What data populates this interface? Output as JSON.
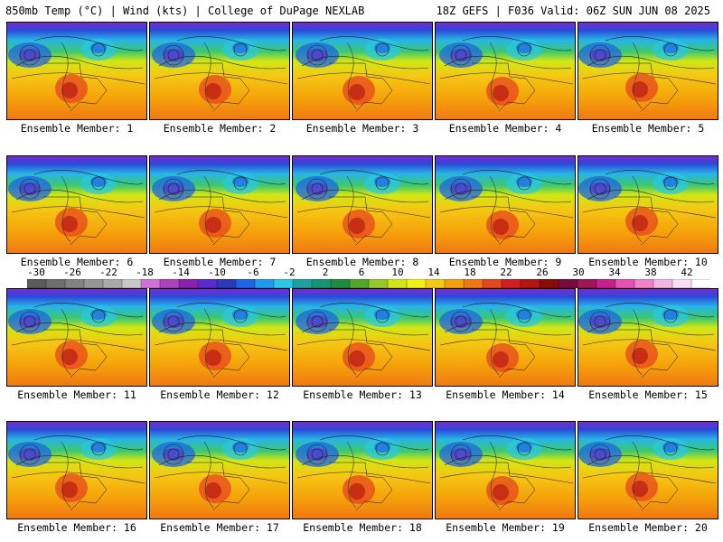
{
  "header": {
    "left": "850mb Temp (°C) | Wind (kts) | College of DuPage NEXLAB",
    "right": "18Z GEFS | F036 Valid: 06Z SUN JUN 08 2025"
  },
  "panels": [
    {
      "label": "Ensemble Member: 1"
    },
    {
      "label": "Ensemble Member: 2"
    },
    {
      "label": "Ensemble Member: 3"
    },
    {
      "label": "Ensemble Member: 4"
    },
    {
      "label": "Ensemble Member: 5"
    },
    {
      "label": "Ensemble Member: 6"
    },
    {
      "label": "Ensemble Member: 7"
    },
    {
      "label": "Ensemble Member: 8"
    },
    {
      "label": "Ensemble Member: 9"
    },
    {
      "label": "Ensemble Member: 10"
    },
    {
      "label": "Ensemble Member: 11"
    },
    {
      "label": "Ensemble Member: 12"
    },
    {
      "label": "Ensemble Member: 13"
    },
    {
      "label": "Ensemble Member: 14"
    },
    {
      "label": "Ensemble Member: 15"
    },
    {
      "label": "Ensemble Member: 16"
    },
    {
      "label": "Ensemble Member: 17"
    },
    {
      "label": "Ensemble Member: 18"
    },
    {
      "label": "Ensemble Member: 19"
    },
    {
      "label": "Ensemble Member: 20"
    }
  ],
  "colorbar": {
    "ticks": [
      "-30",
      "-26",
      "-22",
      "-18",
      "-14",
      "-10",
      "-6",
      "-2",
      "2",
      "6",
      "10",
      "14",
      "18",
      "22",
      "26",
      "30",
      "34",
      "38",
      "42"
    ],
    "colors": [
      "#5a5a5a",
      "#6e6e6e",
      "#828282",
      "#969696",
      "#aaaaaa",
      "#c8c8c8",
      "#d070d8",
      "#b040c0",
      "#8a20b0",
      "#5a2ad0",
      "#2a3ab8",
      "#1e64e6",
      "#1e9bf0",
      "#28c8e6",
      "#1ea0a0",
      "#14966e",
      "#1e8c3c",
      "#50aa28",
      "#96c828",
      "#d2e614",
      "#f0f014",
      "#f5c814",
      "#f5a00a",
      "#f07814",
      "#e6461e",
      "#d21e1e",
      "#b41414",
      "#8c0a0a",
      "#780a3c",
      "#a0145a",
      "#c81e8c",
      "#e650b4",
      "#f082c8",
      "#f5b4e6",
      "#fadcf5",
      "#ffffff"
    ]
  }
}
